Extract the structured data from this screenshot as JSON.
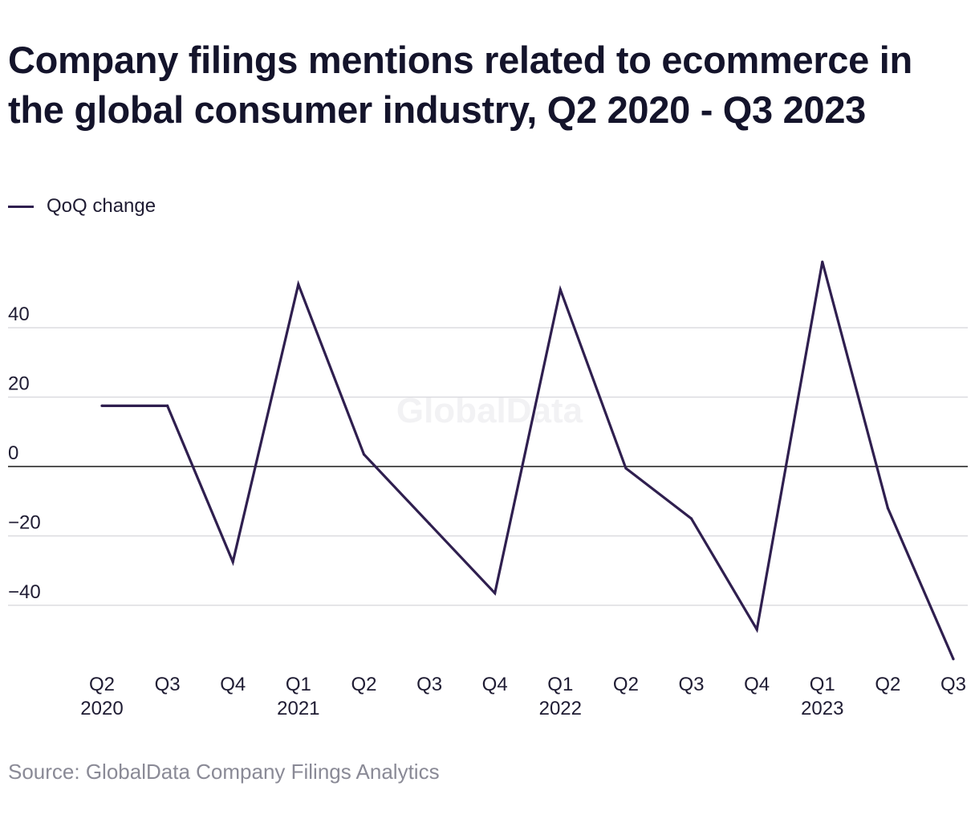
{
  "title": "Company filings mentions related to ecommerce in the global consumer industry, Q2 2020 - Q3 2023",
  "legend": {
    "label": "QoQ change",
    "color": "#2f1f4f"
  },
  "source": "Source: GlobalData Company Filings Analytics",
  "watermark": "GlobalData",
  "chart_data": {
    "type": "line",
    "categories": [
      "Q2",
      "Q3",
      "Q4",
      "Q1",
      "Q2",
      "Q3",
      "Q4",
      "Q1",
      "Q2",
      "Q3",
      "Q4",
      "Q1",
      "Q2",
      "Q3"
    ],
    "year_labels": [
      "2020",
      "",
      "",
      "2021",
      "",
      "",
      "",
      "2022",
      "",
      "",
      "",
      "2023",
      "",
      ""
    ],
    "series": [
      {
        "name": "QoQ change",
        "color": "#2f1f4f",
        "values": [
          17.5,
          17.5,
          -27.5,
          52.5,
          3.5,
          -16.5,
          -36.5,
          51,
          -0.5,
          -15,
          -47,
          59,
          -12,
          -55.5
        ]
      }
    ],
    "yticks": [
      40,
      20,
      0,
      -20,
      -40
    ],
    "ytick_labels": [
      "40",
      "20",
      "0",
      "−20",
      "−40"
    ],
    "ylim": [
      -60,
      65
    ],
    "grid": true,
    "legend_position": "top-left",
    "xlabel": "",
    "ylabel": ""
  }
}
